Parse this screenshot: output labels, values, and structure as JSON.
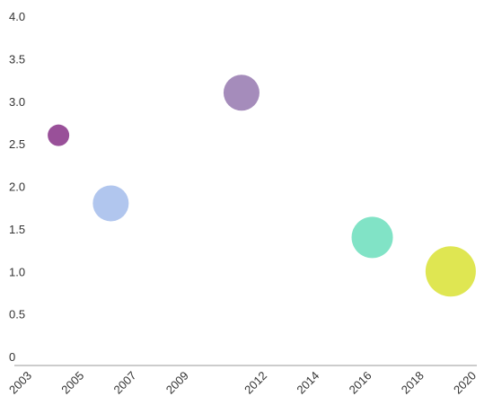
{
  "chart_data": {
    "type": "scatter",
    "title": "",
    "xlabel": "",
    "ylabel": "",
    "xlim": [
      2003,
      2020
    ],
    "ylim": [
      0,
      4.0
    ],
    "x_ticks": [
      "2003",
      "2005",
      "2007",
      "2009",
      "2012",
      "2014",
      "2016",
      "2018",
      "2020"
    ],
    "y_ticks": [
      "0",
      "0.5",
      "1.0",
      "1.5",
      "2.0",
      "2.5",
      "3.0",
      "3.5",
      "4.0"
    ],
    "grid": false,
    "legend": "none",
    "points": [
      {
        "x": 2004.0,
        "y": 2.6,
        "size": 12,
        "color": "#8e3d8e"
      },
      {
        "x": 2006.0,
        "y": 1.8,
        "size": 20,
        "color": "#a8c0ec"
      },
      {
        "x": 2011.0,
        "y": 3.1,
        "size": 20,
        "color": "#9b7fb4"
      },
      {
        "x": 2016.0,
        "y": 1.4,
        "size": 23,
        "color": "#73e0c0"
      },
      {
        "x": 2019.0,
        "y": 1.0,
        "size": 28,
        "color": "#dbe33f"
      }
    ]
  }
}
